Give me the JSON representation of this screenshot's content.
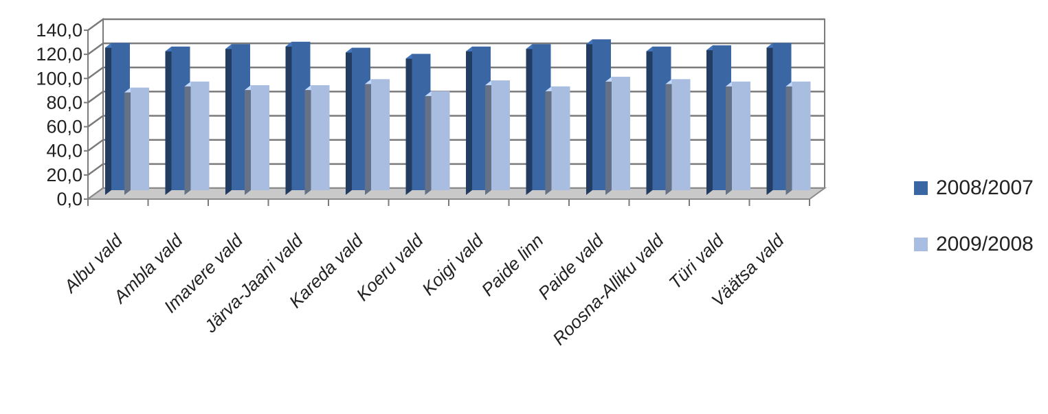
{
  "chart_data": {
    "type": "bar",
    "title": "",
    "xlabel": "",
    "ylabel": "",
    "categories": [
      "Albu vald",
      "Ambla vald",
      "Imavere vald",
      "Järva-Jaani vald",
      "Kareda vald",
      "Koeru vald",
      "Koigi vald",
      "Paide linn",
      "Paide vald",
      "Roosna-Alliku vald",
      "Türi vald",
      "Väätsa vald"
    ],
    "series": [
      {
        "name": "2008/2007",
        "color": "#3a66a4",
        "values": [
          122.0,
          119.0,
          121.0,
          123.0,
          118.0,
          113.0,
          119.0,
          121.0,
          125.0,
          119.0,
          120.0,
          122.0
        ]
      },
      {
        "name": "2009/2008",
        "color": "#a9bde0",
        "values": [
          85.0,
          90.0,
          87.0,
          87.0,
          92.0,
          82.0,
          91.0,
          86.0,
          94.0,
          92.0,
          90.0,
          90.0
        ]
      }
    ],
    "ylim": [
      0,
      140
    ],
    "yticks": [
      "0,0",
      "20,0",
      "40,0",
      "60,0",
      "80,0",
      "100,0",
      "120,0",
      "140,0"
    ],
    "grid": true,
    "legend_position": "right"
  }
}
